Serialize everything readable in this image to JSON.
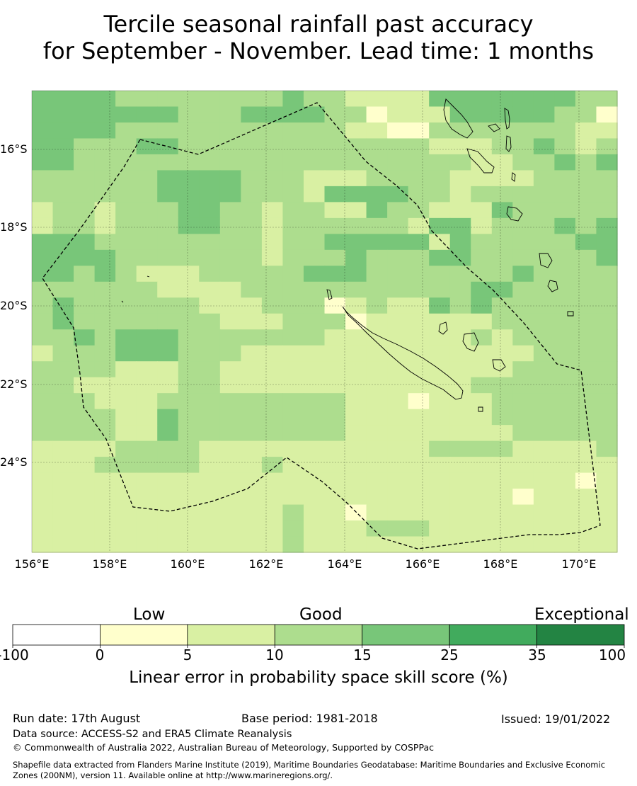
{
  "title": {
    "line1": "Tercile seasonal rainfall past accuracy",
    "line2": "for September - November. Lead time: 1 months"
  },
  "map": {
    "lat_labels": [
      "16°S",
      "18°S",
      "20°S",
      "22°S",
      "24°S"
    ],
    "lon_labels": [
      "156°E",
      "158°E",
      "160°E",
      "162°E",
      "164°E",
      "166°E",
      "168°E",
      "170°E"
    ]
  },
  "colorbar": {
    "category_low": "Low",
    "category_good": "Good",
    "category_exceptional": "Exceptional",
    "ticks": [
      "-100",
      "0",
      "5",
      "10",
      "15",
      "25",
      "35",
      "100"
    ],
    "colors": [
      "#ffffff",
      "#ffffcc",
      "#d9f0a3",
      "#addd8e",
      "#78c679",
      "#41ab5d",
      "#238443"
    ],
    "label": "Linear error in probability space skill score (%)"
  },
  "footer": {
    "run_date": "Run date: 17th August",
    "base_period": "Base period: 1981-2018",
    "issued": "Issued: 19/01/2022",
    "data_source": "Data source: ACCESS-S2 and ERA5 Climate Reanalysis",
    "copyright": "© Commonwealth of Australia 2022, Australian Bureau of Meteorology, Supported by COSPPac",
    "shapefile_line1": "Shapefile data extracted from Flanders Marine Institute (2019), Maritime Boundaries Geodatabase: Maritime Boundaries and Exclusive Economic",
    "shapefile_line2": "Zones (200NM), version 11. Available online at http://www.marineregions.org/."
  },
  "grid_rows": [
    "4444333333334332222444444433",
    "4444444333444433122244444331",
    "4444333333333332211333333322",
    "4433344333333333333222334323",
    "4433333333333333333332233434",
    "3333334444333222333322223333",
    "3333334444333244443323333333",
    "2332333443323322433222433333",
    "2332333443323333332442333434",
    "4443333333323344444243333344",
    "4444333333323334333443333334",
    "4434322233333444333333343333",
    "3333332222333333333334433333",
    "3433333322233312322434333333",
    "3433333332223331222222333333",
    "3343444333333322222223233333",
    "2333444333222222222222223333",
    "3333222332222222222222233333",
    "3322222332222222222223333333",
    "3332223333333332221222333333",
    "3333224333333332222222333333",
    "3333224333333332222222233333",
    "2222333322222222222333322223",
    "2223333322232222222222222222",
    "2222222222222222222222222212",
    "2222222222222222222222212222",
    "2222222222223221222222222222",
    "2222222222223222333222222222",
    "2222222222223222222222222222"
  ]
}
